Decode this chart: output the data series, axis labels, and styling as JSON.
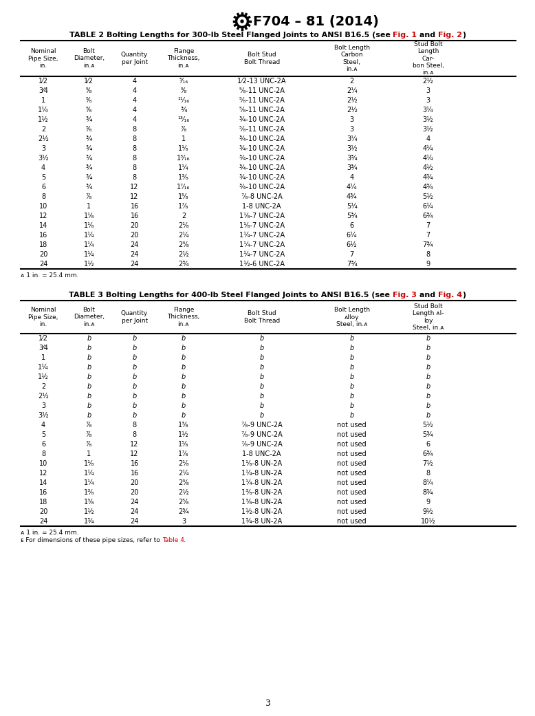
{
  "title": "F704 – 81 (2014)",
  "table2_headers": [
    "Nominal\nPipe Size,\nin.",
    "Bolt\nDiameter,\nin.A",
    "Quantity\nper Joint",
    "Flange\nThickness,\nin.A",
    "Bolt Stud\nBolt Thread",
    "Bolt Length\nCarbon\nSteel,\nin.A",
    "Stud Bolt\nLength\nCar-\nbon Steel,\nin.A"
  ],
  "table2_data": [
    [
      "1⁄2",
      "1⁄2",
      "4",
      "⁵⁄₁₆",
      "1⁄2-13 UNC-2A",
      "2",
      "2½"
    ],
    [
      "3⁄4",
      "⁵⁄₈",
      "4",
      "⁵⁄₈",
      "⁵⁄₈-11 UNC-2A",
      "2¼",
      "3"
    ],
    [
      "1",
      "⁵⁄₈",
      "4",
      "¹¹⁄₁₆",
      "⁵⁄₈-11 UNC-2A",
      "2½",
      "3"
    ],
    [
      "1¼",
      "⁵⁄₈",
      "4",
      "¾",
      "⁵⁄₈-11 UNC-2A",
      "2½",
      "3¼"
    ],
    [
      "1½",
      "¾",
      "4",
      "¹³⁄₁₆",
      "¾-10 UNC-2A",
      "3",
      "3½"
    ],
    [
      "2",
      "⁵⁄₈",
      "8",
      "⁷⁄₈",
      "⁵⁄₈-11 UNC-2A",
      "3",
      "3½"
    ],
    [
      "2½",
      "¾",
      "8",
      "1",
      "¾-10 UNC-2A",
      "3¼",
      "4"
    ],
    [
      "3",
      "¾",
      "8",
      "1¹⁄₈",
      "¾-10 UNC-2A",
      "3½",
      "4¼"
    ],
    [
      "3½",
      "¾",
      "8",
      "1³⁄₁₆",
      "¾-10 UNC-2A",
      "3¾",
      "4¼"
    ],
    [
      "4",
      "¾",
      "8",
      "1¼",
      "¾-10 UNC-2A",
      "3¾",
      "4½"
    ],
    [
      "5",
      "¾",
      "8",
      "1³⁄₈",
      "¾-10 UNC-2A",
      "4",
      "4¾"
    ],
    [
      "6",
      "¾",
      "12",
      "1⁷⁄₁₆",
      "¾-10 UNC-2A",
      "4¼",
      "4¾"
    ],
    [
      "8",
      "⁷⁄₈",
      "12",
      "1⁵⁄₈",
      "⁷⁄₈-8 UNC-2A",
      "4¾",
      "5½"
    ],
    [
      "10",
      "1",
      "16",
      "1⁷⁄₈",
      "1-8 UNC-2A",
      "5¼",
      "6¼"
    ],
    [
      "12",
      "1¹⁄₈",
      "16",
      "2",
      "1¹⁄₈-7 UNC-2A",
      "5¾",
      "6¾"
    ],
    [
      "14",
      "1¹⁄₈",
      "20",
      "2¹⁄₈",
      "1¹⁄₈-7 UNC-2A",
      "6",
      "7"
    ],
    [
      "16",
      "1¼",
      "20",
      "2¼",
      "1¼-7 UNC-2A",
      "6¼",
      "7"
    ],
    [
      "18",
      "1¼",
      "24",
      "2³⁄₈",
      "1¼-7 UNC-2A",
      "6½",
      "7¾"
    ],
    [
      "20",
      "1¼",
      "24",
      "2½",
      "1¼-7 UNC-2A",
      "7",
      "8"
    ],
    [
      "24",
      "1½",
      "24",
      "2¾",
      "1½-6 UNC-2A",
      "7¾",
      "9"
    ]
  ],
  "table3_headers": [
    "Nominal\nPipe Size,\nin.",
    "Bolt\nDiameter,\nin.A",
    "Quantity\nper Joint",
    "Flange\nThickness,\nin.A",
    "Bolt Stud\nBolt Thread",
    "Bolt Length\nAlloy\nSteel, in.A",
    "Stud Bolt\nLength Al-\nloy\nSteel, in.A"
  ],
  "table3_data_b": [
    "1⁄2",
    "3⁄4",
    "1",
    "1¼",
    "1½",
    "2",
    "2½",
    "3",
    "3½"
  ],
  "table3_data": [
    [
      "4",
      "⁷⁄₈",
      "8",
      "1³⁄₈",
      "⁷⁄₈-9 UNC-2A",
      "not used",
      "5½"
    ],
    [
      "5",
      "⁷⁄₈",
      "8",
      "1½",
      "⁷⁄₈-9 UNC-2A",
      "not used",
      "5¾"
    ],
    [
      "6",
      "⁷⁄₈",
      "12",
      "1⁵⁄₈",
      "⁷⁄₈-9 UNC-2A",
      "not used",
      "6"
    ],
    [
      "8",
      "1",
      "12",
      "1⁷⁄₈",
      "1-8 UNC-2A",
      "not used",
      "6¾"
    ],
    [
      "10",
      "1¹⁄₈",
      "16",
      "2¹⁄₈",
      "1¹⁄₈-8 UN-2A",
      "not used",
      "7½"
    ],
    [
      "12",
      "1¼",
      "16",
      "2¼",
      "1¼-8 UN-2A",
      "not used",
      "8"
    ],
    [
      "14",
      "1¼",
      "20",
      "2³⁄₈",
      "1¼-8 UN-2A",
      "not used",
      "8¼"
    ],
    [
      "16",
      "1³⁄₈",
      "20",
      "2½",
      "1³⁄₈-8 UN-2A",
      "not used",
      "8¾"
    ],
    [
      "18",
      "1³⁄₈",
      "24",
      "2⁵⁄₈",
      "1³⁄₈-8 UN-2A",
      "not used",
      "9"
    ],
    [
      "20",
      "1½",
      "24",
      "2¾",
      "1½-8 UN-2A",
      "not used",
      "9½"
    ],
    [
      "24",
      "1¾",
      "24",
      "3",
      "1¾-8 UN-2A",
      "not used",
      "10½"
    ]
  ],
  "red_color": "#CC0000",
  "bg_color": "#FFFFFF",
  "page_number": "3"
}
